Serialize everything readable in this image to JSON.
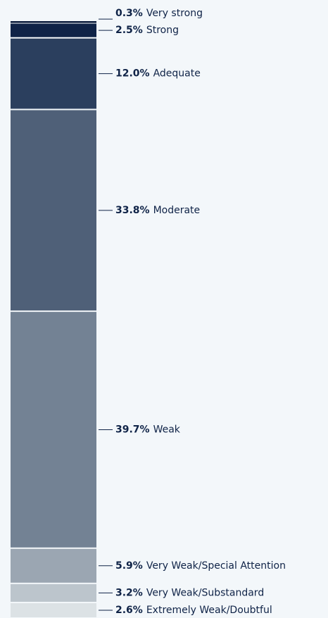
{
  "chart_data": {
    "type": "stacked_bar",
    "categories": [
      "Very strong",
      "Strong",
      "Adequate",
      "Moderate",
      "Weak",
      "Very Weak/Special Attention",
      "Very Weak/Substandard",
      "Extremely Weak/Doubtful"
    ],
    "values": [
      0.3,
      2.5,
      12.0,
      33.8,
      39.7,
      5.9,
      3.2,
      2.6
    ],
    "value_labels": [
      "0.3%",
      "2.5%",
      "12.0%",
      "33.8%",
      "39.7%",
      "5.9%",
      "3.2%",
      "2.6%"
    ],
    "colors": [
      "#0b1c3c",
      "#0f2347",
      "#2b3f5e",
      "#4f6078",
      "#738294",
      "#9ba6b2",
      "#bcc5cc",
      "#dce2e5"
    ],
    "ylim": [
      0,
      100
    ]
  }
}
